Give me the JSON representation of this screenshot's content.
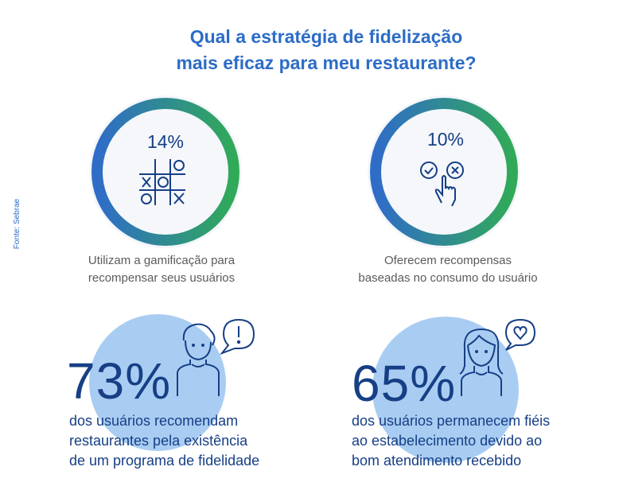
{
  "title": {
    "line1": "Qual a estratégia de fidelização",
    "line2": "mais eficaz para meu restaurante?"
  },
  "source": "Fonte: Sebrae",
  "colors": {
    "title": "#2c6cc6",
    "ring_start": "#2f6cc8",
    "ring_end": "#31aa58",
    "dark_blue": "#163f86",
    "light_blue": "#a9cdf2",
    "caption": "#5b5b5b"
  },
  "stats_top": [
    {
      "value": "14%",
      "icon": "tic-tac-toe-icon",
      "caption_line1": "Utilizam a gamificação para",
      "caption_line2": "recompensar seus usuários"
    },
    {
      "value": "10%",
      "icon": "check-cross-tap-icon",
      "caption_line1": "Oferecem recompensas",
      "caption_line2": "baseadas no consumo do usuário"
    }
  ],
  "stats_bottom": [
    {
      "value": "73%",
      "icon": "man-exclamation-icon",
      "lines": [
        "dos usuários recomendam",
        "restaurantes pela existência",
        "de um programa de fidelidade"
      ]
    },
    {
      "value": "65%",
      "icon": "woman-heart-icon",
      "lines": [
        "dos usuários permanecem fiéis",
        "ao estabelecimento devido ao",
        "bom atendimento recebido"
      ]
    }
  ]
}
